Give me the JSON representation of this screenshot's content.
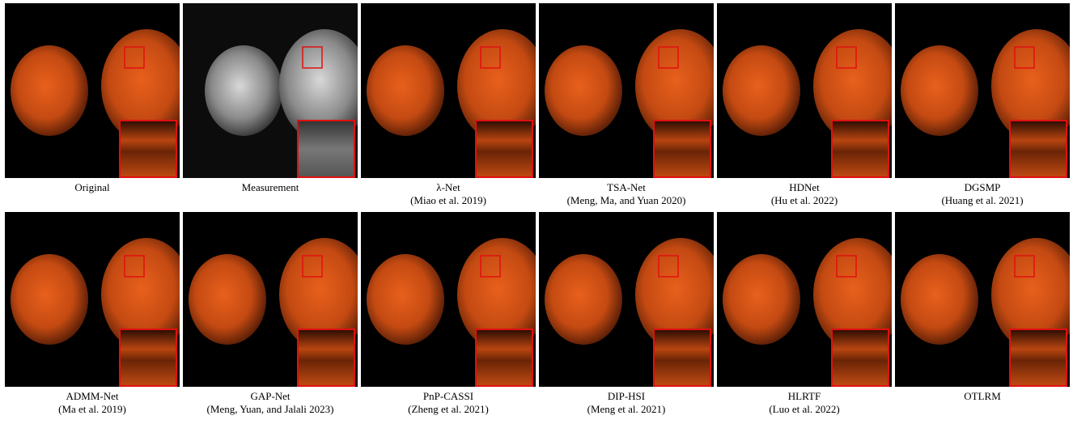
{
  "panels": [
    {
      "label": "Original"
    },
    {
      "label": "Measurement"
    },
    {
      "label": "λ-Net",
      "citation": "(Miao et al. 2019)"
    },
    {
      "label": "TSA-Net",
      "citation": "(Meng, Ma, and Yuan 2020)"
    },
    {
      "label": "HDNet",
      "citation": "(Hu et al. 2022)"
    },
    {
      "label": "DGSMP",
      "citation": "(Huang et al. 2021)"
    },
    {
      "label": "ADMM-Net",
      "citation": "(Ma et al. 2019)"
    },
    {
      "label": "GAP-Net",
      "citation": "(Meng, Yuan, and Jalali 2023)"
    },
    {
      "label": "PnP-CASSI",
      "citation": "(Zheng et al. 2021)"
    },
    {
      "label": "DIP-HSI",
      "citation": "(Meng et al. 2021)"
    },
    {
      "label": "HLRTF",
      "citation": "(Luo et al. 2022)"
    },
    {
      "label": "OTLRM"
    }
  ]
}
